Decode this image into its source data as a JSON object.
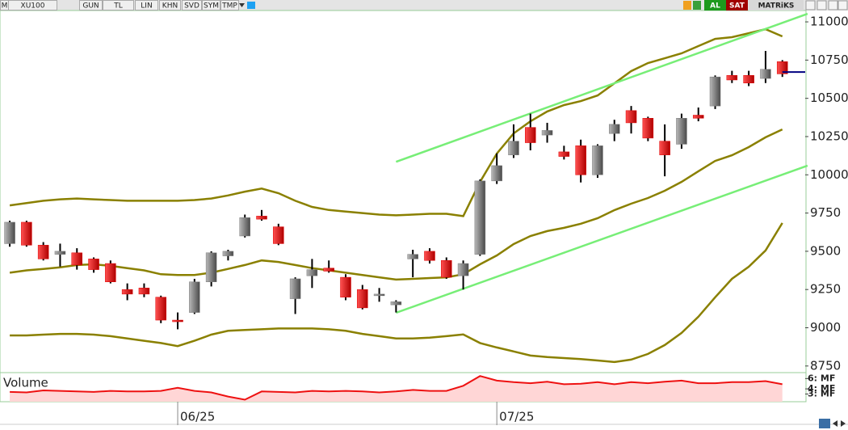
{
  "toolbar": {
    "left": [
      "M",
      "XU100",
      "GUN",
      "TL",
      "LIN",
      "KHN",
      "SVD",
      "SYM",
      "TMP"
    ],
    "right": [
      "AL",
      "SAT",
      "MATRiKS"
    ]
  },
  "chart_data": [
    {
      "type": "candlestick",
      "open": [
        9550,
        9690,
        9540,
        9480,
        9490,
        9450,
        9420,
        9250,
        9260,
        9200,
        9050,
        9100,
        9300,
        9470,
        9600,
        9730,
        9660,
        9190,
        9340,
        9390,
        9330,
        9250,
        9210,
        9150,
        9450,
        9500,
        9440,
        9340,
        9480,
        9960,
        10130,
        10310,
        10260,
        10150,
        10190,
        10000,
        10270,
        10420,
        10370,
        10220,
        10200,
        10390,
        10450,
        10650,
        10650,
        10630,
        10740
      ],
      "high": [
        9700,
        9700,
        9560,
        9550,
        9520,
        9460,
        9440,
        9290,
        9290,
        9210,
        9100,
        9320,
        9500,
        9510,
        9740,
        9770,
        9680,
        9330,
        9450,
        9440,
        9350,
        9280,
        9260,
        9180,
        9510,
        9520,
        9460,
        9440,
        9970,
        10140,
        10330,
        10400,
        10340,
        10190,
        10230,
        10200,
        10360,
        10450,
        10380,
        10330,
        10400,
        10440,
        10650,
        10680,
        10680,
        10810,
        10750
      ],
      "low": [
        9530,
        9530,
        9440,
        9400,
        9380,
        9360,
        9290,
        9180,
        9200,
        9030,
        8990,
        9090,
        9270,
        9440,
        9590,
        9700,
        9540,
        9090,
        9260,
        9360,
        9180,
        9120,
        9170,
        9100,
        9330,
        9420,
        9320,
        9250,
        9470,
        9940,
        10110,
        10160,
        10210,
        10100,
        9950,
        9980,
        10220,
        10270,
        10220,
        9990,
        10170,
        10350,
        10430,
        10600,
        10580,
        10600,
        10640
      ],
      "close": [
        9690,
        9540,
        9450,
        9500,
        9410,
        9380,
        9300,
        9220,
        9220,
        9050,
        9040,
        9300,
        9490,
        9500,
        9720,
        9710,
        9550,
        9320,
        9380,
        9370,
        9200,
        9130,
        9220,
        9170,
        9480,
        9440,
        9330,
        9420,
        9960,
        10060,
        10220,
        10210,
        10290,
        10120,
        10000,
        10190,
        10330,
        10340,
        10240,
        10130,
        10370,
        10370,
        10640,
        10620,
        10600,
        10690,
        10660
      ],
      "up_color": "#7a7a7a",
      "down_color": "#dd0000",
      "bands": [
        {
          "color": "#8a8000",
          "values": [
            9800,
            9815,
            9830,
            9840,
            9845,
            9840,
            9835,
            9830,
            9830,
            9830,
            9830,
            9835,
            9845,
            9865,
            9890,
            9910,
            9880,
            9830,
            9790,
            9770,
            9760,
            9750,
            9740,
            9735,
            9740,
            9745,
            9745,
            9730,
            9954,
            10139,
            10271,
            10350,
            10414,
            10456,
            10482,
            10519,
            10598,
            10678,
            10731,
            10762,
            10794,
            10842,
            10889,
            10900,
            10926,
            10952,
            10905
          ]
        },
        {
          "color": "#8a8000",
          "values": [
            9360,
            9375,
            9385,
            9395,
            9410,
            9415,
            9405,
            9390,
            9375,
            9350,
            9345,
            9345,
            9360,
            9385,
            9410,
            9440,
            9430,
            9410,
            9390,
            9375,
            9360,
            9345,
            9330,
            9315,
            9320,
            9325,
            9330,
            9350,
            9415,
            9473,
            9547,
            9600,
            9632,
            9653,
            9680,
            9716,
            9769,
            9811,
            9848,
            9896,
            9954,
            10023,
            10091,
            10128,
            10181,
            10245,
            10297
          ]
        },
        {
          "color": "#8a8000",
          "values": [
            8950,
            8950,
            8955,
            8960,
            8960,
            8955,
            8945,
            8930,
            8915,
            8900,
            8880,
            8915,
            8955,
            8980,
            8985,
            8990,
            8995,
            8995,
            8995,
            8990,
            8980,
            8960,
            8945,
            8930,
            8930,
            8935,
            8945,
            8956,
            8900,
            8871,
            8845,
            8818,
            8808,
            8802,
            8795,
            8786,
            8776,
            8792,
            8829,
            8887,
            8966,
            9072,
            9199,
            9320,
            9399,
            9505,
            9685
          ]
        }
      ],
      "trendlines": [
        {
          "color": "#77ee77",
          "x": [
            23,
            47.5
          ],
          "y": [
            10085,
            11053
          ]
        },
        {
          "color": "#77ee77",
          "x": [
            23,
            47.5
          ],
          "y": [
            9098,
            10060
          ]
        }
      ],
      "last_price": 10672,
      "last_price_color": "#000080",
      "xlim": [
        -0.58,
        47.36
      ],
      "ylim": [
        8712,
        11069
      ],
      "yticks": [
        8750,
        9000,
        9250,
        9500,
        9750,
        10000,
        10250,
        10500,
        10750,
        11000
      ],
      "xticks": [
        {
          "value": 10,
          "label": "06/25"
        },
        {
          "value": 29,
          "label": "07/25"
        }
      ]
    },
    {
      "type": "area",
      "title": "Volume",
      "color": "#ee1111",
      "fill": "#ffd6d6",
      "values": [
        3.4,
        3.3,
        3.7,
        3.6,
        3.5,
        3.4,
        3.6,
        3.5,
        3.5,
        3.6,
        4.2,
        3.6,
        3.3,
        2.5,
        1.9,
        3.5,
        3.4,
        3.3,
        3.6,
        3.5,
        3.6,
        3.5,
        3.3,
        3.5,
        3.8,
        3.6,
        3.6,
        4.6,
        6.5,
        5.6,
        5.3,
        5.1,
        5.4,
        4.9,
        5.0,
        5.3,
        4.9,
        5.3,
        5.1,
        5.4,
        5.6,
        5.1,
        5.1,
        5.3,
        5.3,
        5.5,
        4.9
      ],
      "xlim": [
        -0.58,
        47.36
      ],
      "ylim": [
        1.5,
        7
      ],
      "yticks": [
        {
          "value": 6,
          "label": "6: MF"
        },
        {
          "value": 4,
          "label": "4: MF"
        },
        {
          "value": 3,
          "label": "3: MF"
        }
      ]
    }
  ]
}
